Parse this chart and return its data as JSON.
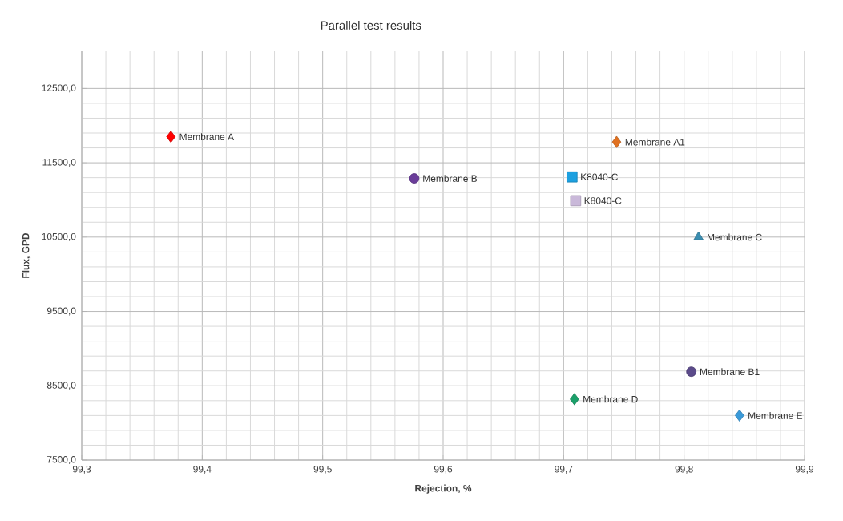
{
  "chart_data": {
    "type": "scatter",
    "title": "Parallel test results",
    "xlabel": "Rejection, %",
    "ylabel": "Flux, GPD",
    "xlim": [
      99.3,
      99.9
    ],
    "ylim": [
      7500,
      13000
    ],
    "xticks": [
      {
        "value": 99.3,
        "label": "99,3"
      },
      {
        "value": 99.4,
        "label": "99,4"
      },
      {
        "value": 99.5,
        "label": "99,5"
      },
      {
        "value": 99.6,
        "label": "99,6"
      },
      {
        "value": 99.7,
        "label": "99,7"
      },
      {
        "value": 99.8,
        "label": "99,8"
      },
      {
        "value": 99.9,
        "label": "99,9"
      }
    ],
    "yticks": [
      {
        "value": 7500,
        "label": "7500,0"
      },
      {
        "value": 8500,
        "label": "8500,0"
      },
      {
        "value": 9500,
        "label": "9500,0"
      },
      {
        "value": 10500,
        "label": "10500,0"
      },
      {
        "value": 11500,
        "label": "11500,0"
      },
      {
        "value": 12500,
        "label": "12500,0"
      }
    ],
    "grid": true,
    "series": [
      {
        "name": "Membrane A",
        "color": "#ff0000",
        "marker": "diamond",
        "x": [
          99.374
        ],
        "values": [
          11850
        ]
      },
      {
        "name": "Membrane A1",
        "color": "#e07020",
        "marker": "diamond",
        "x": [
          99.744
        ],
        "values": [
          11780
        ]
      },
      {
        "name": "Membrane B",
        "color": "#6a3d9a",
        "marker": "circle",
        "x": [
          99.576
        ],
        "values": [
          11290
        ]
      },
      {
        "name": "K8040-C",
        "color": "#1ca0e0",
        "marker": "square",
        "x": [
          99.707
        ],
        "values": [
          11310
        ]
      },
      {
        "name": "K8040-C",
        "color": "#c9b8d9",
        "marker": "square",
        "x": [
          99.71
        ],
        "values": [
          10990
        ]
      },
      {
        "name": "Membrane C",
        "color": "#3a8db0",
        "marker": "triangle",
        "x": [
          99.812
        ],
        "values": [
          10500
        ]
      },
      {
        "name": "Membrane B1",
        "color": "#5b4a8a",
        "marker": "circle",
        "x": [
          99.806
        ],
        "values": [
          8690
        ]
      },
      {
        "name": "Membrane D",
        "color": "#1aa06a",
        "marker": "diamond",
        "x": [
          99.709
        ],
        "values": [
          8320
        ]
      },
      {
        "name": "Membrane E",
        "color": "#3a9ad9",
        "marker": "diamond",
        "x": [
          99.846
        ],
        "values": [
          8100
        ]
      }
    ]
  }
}
